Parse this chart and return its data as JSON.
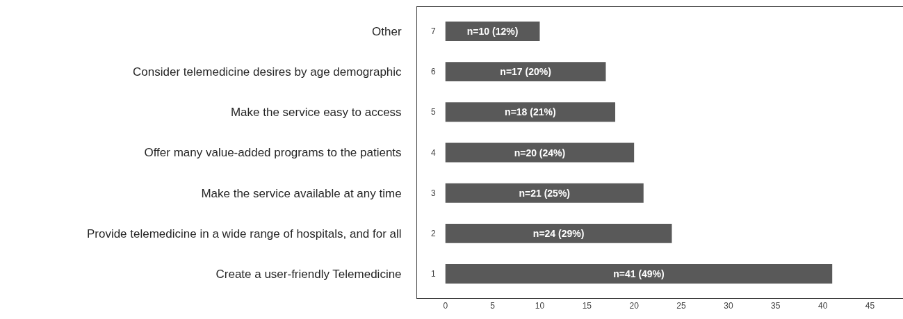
{
  "chart_data": {
    "type": "bar",
    "orientation": "horizontal",
    "categories": [
      "Other",
      "Consider telemedicine desires by age demographic",
      "Make the service easy to access",
      "Offer many value-added programs to the patients",
      "Make the service available at any time",
      "Provide telemedicine in a wide range of hospitals, and for all",
      "Create a user-friendly Telemedicine"
    ],
    "values": [
      10,
      17,
      18,
      20,
      21,
      24,
      41
    ],
    "value_labels": [
      "n=10 (12%)",
      "n=17 (20%)",
      "n=18 (21%)",
      "n=20 (24%)",
      "n=21 (25%)",
      "n=24 (29%)",
      "n=41 (49%)"
    ],
    "color": "#595959",
    "annotations": [
      "7",
      "6",
      "5",
      "4",
      "3",
      "2",
      "1"
    ],
    "xlim": [
      -3,
      48.5
    ],
    "xticks": [
      0,
      5,
      10,
      15,
      20,
      25,
      30,
      35,
      40,
      45
    ],
    "legend": false
  }
}
